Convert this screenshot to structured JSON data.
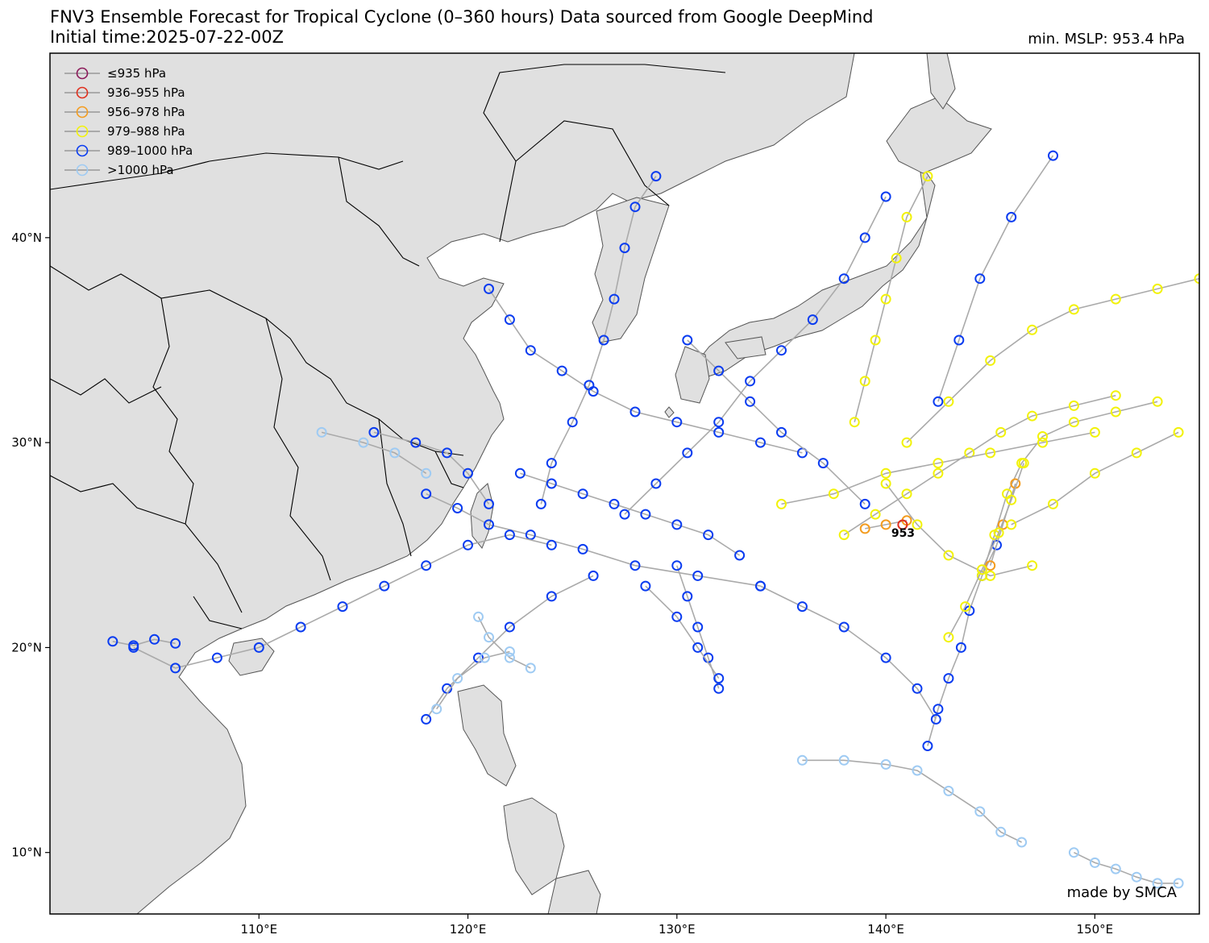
{
  "title": {
    "line1": "FNV3 Ensemble Forecast for Tropical Cyclone (0–360 hours) Data sourced from Google DeepMind",
    "line2": "Initial time:2025-07-22-00Z"
  },
  "summary": {
    "min_mslp_text": "min. MSLP: 953.4 hPa"
  },
  "credit": "made by SMCA",
  "legend": [
    {
      "label": "≤935 hPa",
      "color": "#8b1a5a"
    },
    {
      "label": "936–955 hPa",
      "color": "#e0301e"
    },
    {
      "label": "956–978 hPa",
      "color": "#f39c1f"
    },
    {
      "label": "979–988 hPa",
      "color": "#f2f20a"
    },
    {
      "label": "989–1000 hPa",
      "color": "#0a3cf0"
    },
    {
      "label": ">1000 hPa",
      "color": "#9fcbf3"
    }
  ],
  "axes": {
    "lon_range": [
      100,
      155
    ],
    "lat_range": [
      7,
      49
    ],
    "lon_ticks": [
      {
        "value": 110,
        "label": "110°E"
      },
      {
        "value": 120,
        "label": "120°E"
      },
      {
        "value": 130,
        "label": "130°E"
      },
      {
        "value": 140,
        "label": "140°E"
      },
      {
        "value": 150,
        "label": "150°E"
      }
    ],
    "lat_ticks": [
      {
        "value": 10,
        "label": "10°N"
      },
      {
        "value": 20,
        "label": "20°N"
      },
      {
        "value": 30,
        "label": "30°N"
      },
      {
        "value": 40,
        "label": "40°N"
      }
    ]
  },
  "min_marker": {
    "lon": 140.8,
    "lat": 25.6,
    "label": "953"
  },
  "colors": {
    "land": "#e0e0e0",
    "ocean": "#ffffff",
    "track": "#aaaaaa",
    "border": "#000000"
  },
  "tracks": [
    {
      "cat": 4,
      "points": [
        [
          142.0,
          15.2
        ],
        [
          142.5,
          17.0
        ],
        [
          143.0,
          18.5
        ],
        [
          143.6,
          20.0
        ],
        [
          144.0,
          21.8
        ],
        [
          144.6,
          23.5
        ],
        [
          145.3,
          25.0
        ]
      ]
    },
    {
      "cat": 3,
      "points": [
        [
          144.6,
          23.5
        ],
        [
          145.2,
          25.5
        ],
        [
          145.8,
          27.5
        ],
        [
          146.5,
          29.0
        ],
        [
          147.5,
          30.3
        ],
        [
          149.0,
          31.0
        ],
        [
          151.0,
          31.5
        ],
        [
          153.0,
          32.0
        ]
      ]
    },
    {
      "cat": 2,
      "points": [
        [
          145.0,
          24.0
        ],
        [
          145.6,
          26.0
        ],
        [
          146.2,
          28.0
        ]
      ]
    },
    {
      "cat": 4,
      "points": [
        [
          142.4,
          16.5
        ],
        [
          141.5,
          18.0
        ],
        [
          140.0,
          19.5
        ],
        [
          138.0,
          21.0
        ],
        [
          136.0,
          22.0
        ],
        [
          134.0,
          23.0
        ]
      ]
    },
    {
      "cat": 4,
      "points": [
        [
          134.0,
          23.0
        ],
        [
          131.0,
          23.5
        ],
        [
          128.0,
          24.0
        ],
        [
          125.5,
          24.8
        ],
        [
          123.0,
          25.5
        ],
        [
          121.0,
          26.0
        ],
        [
          119.5,
          26.8
        ],
        [
          118.0,
          27.5
        ]
      ]
    },
    {
      "cat": 4,
      "points": [
        [
          130.0,
          24.0
        ],
        [
          130.5,
          22.5
        ],
        [
          131.0,
          21.0
        ],
        [
          131.5,
          19.5
        ],
        [
          132.0,
          18.0
        ]
      ]
    },
    {
      "cat": 4,
      "points": [
        [
          126.0,
          23.5
        ],
        [
          124.0,
          22.5
        ],
        [
          122.0,
          21.0
        ],
        [
          120.5,
          19.5
        ],
        [
          119.0,
          18.0
        ],
        [
          118.0,
          16.5
        ]
      ]
    },
    {
      "cat": 5,
      "points": [
        [
          120.5,
          21.5
        ],
        [
          121.0,
          20.5
        ],
        [
          122.0,
          19.5
        ],
        [
          123.0,
          19.0
        ]
      ]
    },
    {
      "cat": 3,
      "points": [
        [
          138.0,
          25.5
        ],
        [
          139.5,
          26.5
        ],
        [
          141.0,
          27.5
        ],
        [
          142.5,
          28.5
        ],
        [
          144.0,
          29.5
        ],
        [
          145.5,
          30.5
        ],
        [
          147.0,
          31.3
        ],
        [
          149.0,
          31.8
        ],
        [
          151.0,
          32.3
        ]
      ]
    },
    {
      "cat": 4,
      "points": [
        [
          136.0,
          29.5
        ],
        [
          134.0,
          30.0
        ],
        [
          132.0,
          30.5
        ],
        [
          130.0,
          31.0
        ],
        [
          128.0,
          31.5
        ],
        [
          126.0,
          32.5
        ],
        [
          124.5,
          33.5
        ],
        [
          123.0,
          34.5
        ],
        [
          122.0,
          36.0
        ],
        [
          121.0,
          37.5
        ]
      ]
    },
    {
      "cat": 3,
      "points": [
        [
          138.5,
          31.0
        ],
        [
          139.0,
          33.0
        ],
        [
          139.5,
          35.0
        ],
        [
          140.0,
          37.0
        ],
        [
          140.5,
          39.0
        ],
        [
          141.0,
          41.0
        ],
        [
          142.0,
          43.0
        ]
      ]
    },
    {
      "cat": 4,
      "points": [
        [
          124.0,
          25.0
        ],
        [
          122.0,
          25.5
        ],
        [
          120.0,
          25.0
        ],
        [
          118.0,
          24.0
        ],
        [
          116.0,
          23.0
        ],
        [
          114.0,
          22.0
        ],
        [
          112.0,
          21.0
        ],
        [
          110.0,
          20.0
        ],
        [
          108.0,
          19.5
        ],
        [
          106.0,
          19.0
        ],
        [
          104.0,
          20.0
        ]
      ]
    },
    {
      "cat": 4,
      "points": [
        [
          103.0,
          20.3
        ],
        [
          104.0,
          20.1
        ],
        [
          105.0,
          20.4
        ],
        [
          106.0,
          20.2
        ]
      ]
    },
    {
      "cat": 3,
      "points": [
        [
          140.0,
          28.0
        ],
        [
          141.5,
          26.0
        ],
        [
          143.0,
          24.5
        ],
        [
          145.0,
          23.5
        ],
        [
          147.0,
          24.0
        ]
      ]
    },
    {
      "cat": 5,
      "points": [
        [
          136.0,
          14.5
        ],
        [
          138.0,
          14.5
        ],
        [
          140.0,
          14.3
        ],
        [
          141.5,
          14.0
        ],
        [
          143.0,
          13.0
        ],
        [
          144.5,
          12.0
        ],
        [
          145.5,
          11.0
        ],
        [
          146.5,
          10.5
        ]
      ]
    },
    {
      "cat": 5,
      "points": [
        [
          149.0,
          10.0
        ],
        [
          150.0,
          9.5
        ],
        [
          151.0,
          9.2
        ],
        [
          152.0,
          8.8
        ],
        [
          153.0,
          8.5
        ],
        [
          154.0,
          8.5
        ]
      ]
    },
    {
      "cat": 4,
      "points": [
        [
          123.5,
          27.0
        ],
        [
          124.0,
          29.0
        ],
        [
          125.0,
          31.0
        ],
        [
          125.8,
          32.8
        ],
        [
          126.5,
          35.0
        ],
        [
          127.0,
          37.0
        ],
        [
          127.5,
          39.5
        ],
        [
          128.0,
          41.5
        ],
        [
          129.0,
          43.0
        ]
      ]
    },
    {
      "cat": 4,
      "points": [
        [
          127.5,
          26.5
        ],
        [
          129.0,
          28.0
        ],
        [
          130.5,
          29.5
        ],
        [
          132.0,
          31.0
        ],
        [
          133.5,
          33.0
        ],
        [
          135.0,
          34.5
        ],
        [
          136.5,
          36.0
        ],
        [
          138.0,
          38.0
        ],
        [
          139.0,
          40.0
        ],
        [
          140.0,
          42.0
        ]
      ]
    },
    {
      "cat": 3,
      "points": [
        [
          141.0,
          30.0
        ],
        [
          143.0,
          32.0
        ],
        [
          145.0,
          34.0
        ],
        [
          147.0,
          35.5
        ],
        [
          149.0,
          36.5
        ],
        [
          151.0,
          37.0
        ],
        [
          153.0,
          37.5
        ],
        [
          155.0,
          38.0
        ]
      ]
    },
    {
      "cat": 4,
      "points": [
        [
          142.5,
          32.0
        ],
        [
          143.5,
          35.0
        ],
        [
          144.5,
          38.0
        ],
        [
          146.0,
          41.0
        ],
        [
          148.0,
          44.0
        ]
      ]
    },
    {
      "cat": 4,
      "points": [
        [
          139.0,
          27.0
        ],
        [
          137.0,
          29.0
        ],
        [
          135.0,
          30.5
        ],
        [
          133.5,
          32.0
        ],
        [
          132.0,
          33.5
        ],
        [
          130.5,
          35.0
        ]
      ]
    },
    {
      "cat": 4,
      "points": [
        [
          133.0,
          24.5
        ],
        [
          131.5,
          25.5
        ],
        [
          130.0,
          26.0
        ],
        [
          128.5,
          26.5
        ],
        [
          127.0,
          27.0
        ],
        [
          125.5,
          27.5
        ],
        [
          124.0,
          28.0
        ],
        [
          122.5,
          28.5
        ]
      ]
    },
    {
      "cat": 3,
      "points": [
        [
          146.0,
          26.0
        ],
        [
          148.0,
          27.0
        ],
        [
          150.0,
          28.5
        ],
        [
          152.0,
          29.5
        ],
        [
          154.0,
          30.5
        ]
      ]
    },
    {
      "cat": 2,
      "points": [
        [
          139.0,
          25.8
        ],
        [
          140.0,
          26.0
        ],
        [
          141.0,
          26.2
        ]
      ]
    },
    {
      "cat": 3,
      "points": [
        [
          143.0,
          20.5
        ],
        [
          143.8,
          22.0
        ],
        [
          144.6,
          23.8
        ],
        [
          145.4,
          25.6
        ],
        [
          146.0,
          27.2
        ],
        [
          146.6,
          29.0
        ]
      ]
    },
    {
      "cat": 5,
      "points": [
        [
          118.5,
          17.0
        ],
        [
          119.5,
          18.5
        ],
        [
          120.8,
          19.5
        ],
        [
          122.0,
          19.8
        ]
      ]
    },
    {
      "cat": 4,
      "points": [
        [
          128.5,
          23.0
        ],
        [
          130.0,
          21.5
        ],
        [
          131.0,
          20.0
        ],
        [
          132.0,
          18.5
        ]
      ]
    },
    {
      "cat": 3,
      "points": [
        [
          135.0,
          27.0
        ],
        [
          137.5,
          27.5
        ],
        [
          140.0,
          28.5
        ],
        [
          142.5,
          29.0
        ],
        [
          145.0,
          29.5
        ],
        [
          147.5,
          30.0
        ],
        [
          150.0,
          30.5
        ]
      ]
    },
    {
      "cat": 4,
      "points": [
        [
          121.0,
          27.0
        ],
        [
          120.0,
          28.5
        ],
        [
          119.0,
          29.5
        ],
        [
          117.5,
          30.0
        ],
        [
          115.5,
          30.5
        ]
      ]
    },
    {
      "cat": 5,
      "points": [
        [
          118.0,
          28.5
        ],
        [
          116.5,
          29.5
        ],
        [
          115.0,
          30.0
        ],
        [
          113.0,
          30.5
        ]
      ]
    }
  ]
}
